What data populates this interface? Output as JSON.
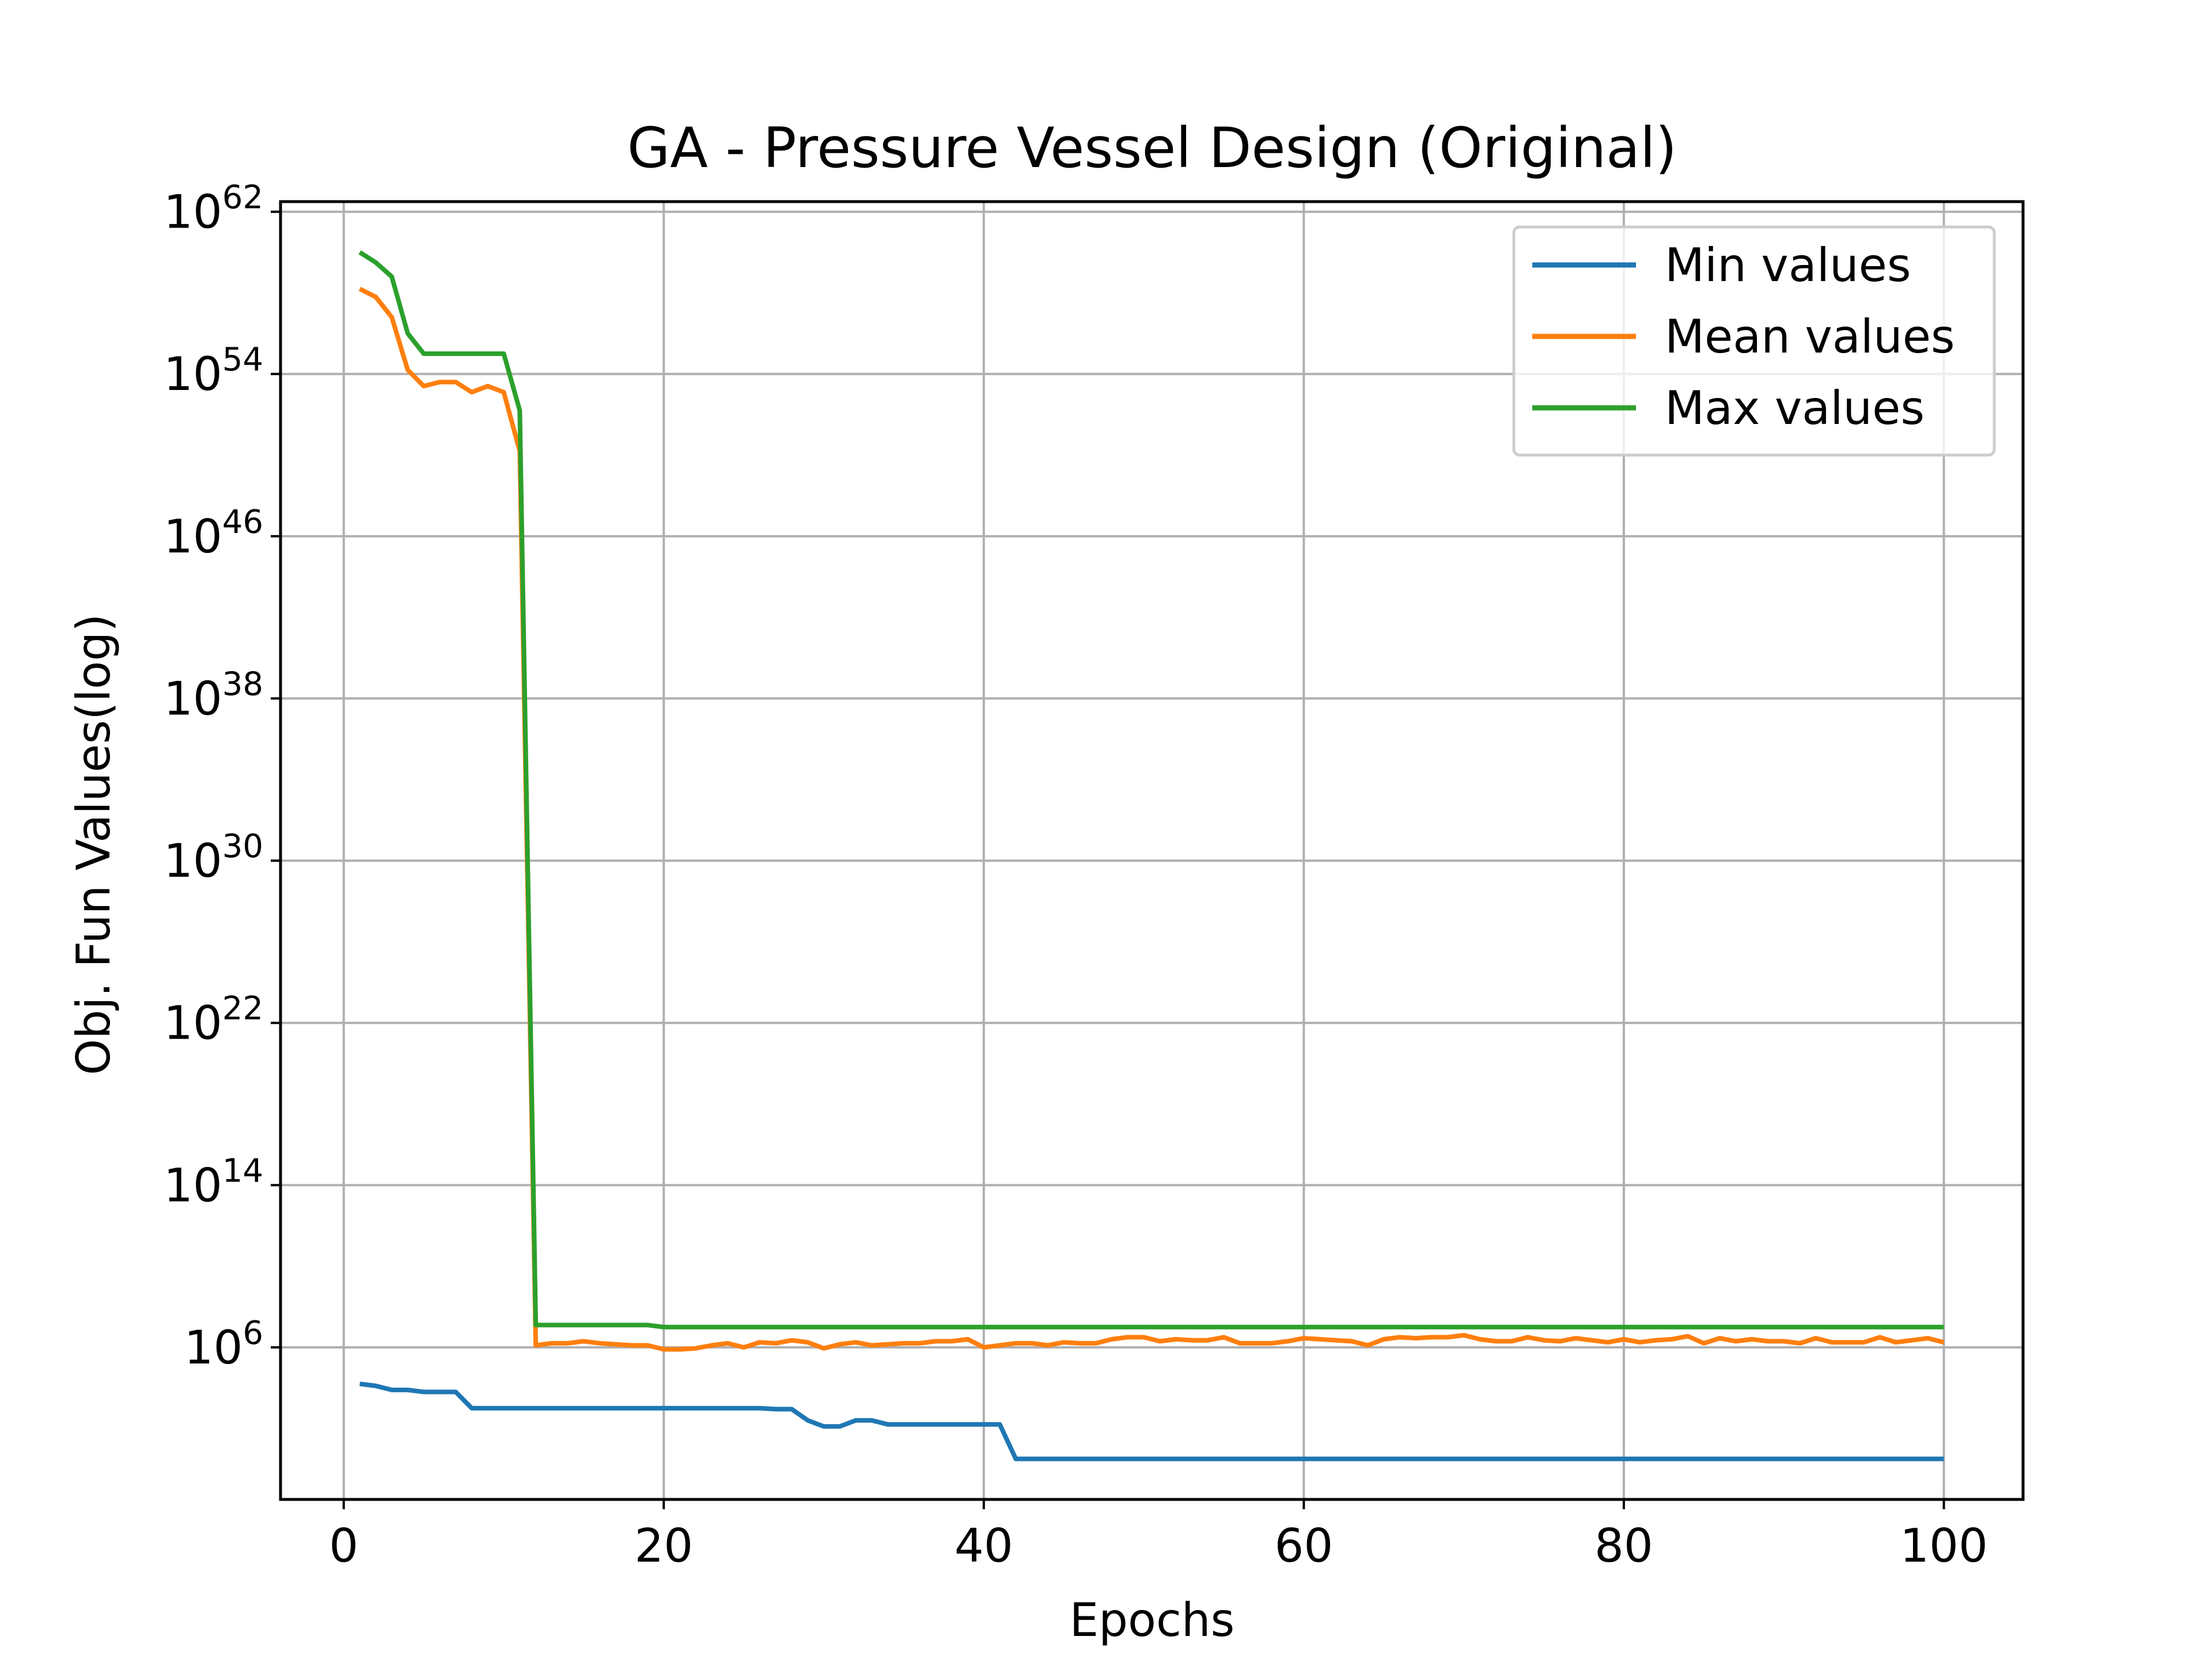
{
  "chart_data": {
    "type": "line",
    "title": "GA - Pressure Vessel Design (Original)",
    "xlabel": "Epochs",
    "ylabel": "Obj. Fun Values(log)",
    "xlim": [
      -3.95,
      104.95
    ],
    "ylim_log10": [
      -1.5,
      62.5
    ],
    "y_scale": "log",
    "x_ticks": [
      0,
      20,
      40,
      60,
      80,
      100
    ],
    "x_tick_labels": [
      "0",
      "20",
      "40",
      "60",
      "80",
      "100"
    ],
    "y_ticks_log10": [
      6,
      14,
      22,
      30,
      38,
      46,
      54,
      62
    ],
    "y_tick_base": "10",
    "y_tick_exponents": [
      "6",
      "14",
      "22",
      "30",
      "38",
      "46",
      "54",
      "62"
    ],
    "grid": true,
    "legend_position": "top-right",
    "colors": {
      "min": "#1f77b4",
      "mean": "#ff7f0e",
      "max": "#2ca02c"
    },
    "series": [
      {
        "name": "Min values",
        "color": "#1f77b4",
        "points_log10": [
          [
            1,
            4.2
          ],
          [
            2,
            4.1
          ],
          [
            3,
            3.9
          ],
          [
            4,
            3.9
          ],
          [
            5,
            3.8
          ],
          [
            6,
            3.8
          ],
          [
            7,
            3.8
          ],
          [
            8,
            3.0
          ],
          [
            9,
            3.0
          ],
          [
            10,
            3.0
          ],
          [
            11,
            3.0
          ],
          [
            12,
            3.0
          ],
          [
            13,
            3.0
          ],
          [
            14,
            3.0
          ],
          [
            15,
            3.0
          ],
          [
            16,
            3.0
          ],
          [
            17,
            3.0
          ],
          [
            18,
            3.0
          ],
          [
            19,
            3.0
          ],
          [
            20,
            3.0
          ],
          [
            21,
            3.0
          ],
          [
            22,
            3.0
          ],
          [
            23,
            3.0
          ],
          [
            24,
            3.0
          ],
          [
            25,
            3.0
          ],
          [
            26,
            3.0
          ],
          [
            27,
            2.95
          ],
          [
            28,
            2.95
          ],
          [
            29,
            2.4
          ],
          [
            30,
            2.1
          ],
          [
            31,
            2.1
          ],
          [
            32,
            2.4
          ],
          [
            33,
            2.4
          ],
          [
            34,
            2.2
          ],
          [
            35,
            2.2
          ],
          [
            36,
            2.2
          ],
          [
            37,
            2.2
          ],
          [
            38,
            2.2
          ],
          [
            39,
            2.2
          ],
          [
            40,
            2.2
          ],
          [
            41,
            2.2
          ],
          [
            42,
            0.5
          ],
          [
            50,
            0.5
          ],
          [
            60,
            0.5
          ],
          [
            70,
            0.5
          ],
          [
            80,
            0.5
          ],
          [
            90,
            0.5
          ],
          [
            100,
            0.5
          ]
        ]
      },
      {
        "name": "Mean values",
        "color": "#ff7f0e",
        "points_log10": [
          [
            1,
            58.2
          ],
          [
            2,
            57.8
          ],
          [
            3,
            56.8
          ],
          [
            4,
            54.2
          ],
          [
            5,
            53.4
          ],
          [
            6,
            53.6
          ],
          [
            7,
            53.6
          ],
          [
            8,
            53.1
          ],
          [
            9,
            53.4
          ],
          [
            10,
            53.1
          ],
          [
            11,
            50.2
          ],
          [
            12,
            6.1
          ],
          [
            13,
            6.2
          ],
          [
            14,
            6.2
          ],
          [
            15,
            6.3
          ],
          [
            16,
            6.2
          ],
          [
            17,
            6.15
          ],
          [
            18,
            6.1
          ],
          [
            19,
            6.1
          ],
          [
            20,
            5.9
          ],
          [
            21,
            5.9
          ],
          [
            22,
            5.95
          ],
          [
            23,
            6.1
          ],
          [
            24,
            6.2
          ],
          [
            25,
            6.0
          ],
          [
            26,
            6.25
          ],
          [
            27,
            6.2
          ],
          [
            28,
            6.35
          ],
          [
            29,
            6.25
          ],
          [
            30,
            5.95
          ],
          [
            31,
            6.15
          ],
          [
            32,
            6.25
          ],
          [
            33,
            6.1
          ],
          [
            34,
            6.15
          ],
          [
            35,
            6.2
          ],
          [
            36,
            6.2
          ],
          [
            37,
            6.3
          ],
          [
            38,
            6.3
          ],
          [
            39,
            6.4
          ],
          [
            40,
            6.0
          ],
          [
            41,
            6.1
          ],
          [
            42,
            6.2
          ],
          [
            43,
            6.2
          ],
          [
            44,
            6.1
          ],
          [
            45,
            6.25
          ],
          [
            46,
            6.2
          ],
          [
            47,
            6.2
          ],
          [
            48,
            6.4
          ],
          [
            49,
            6.5
          ],
          [
            50,
            6.5
          ],
          [
            51,
            6.3
          ],
          [
            52,
            6.4
          ],
          [
            53,
            6.35
          ],
          [
            54,
            6.35
          ],
          [
            55,
            6.5
          ],
          [
            56,
            6.2
          ],
          [
            57,
            6.2
          ],
          [
            58,
            6.2
          ],
          [
            59,
            6.3
          ],
          [
            60,
            6.45
          ],
          [
            61,
            6.4
          ],
          [
            62,
            6.35
          ],
          [
            63,
            6.3
          ],
          [
            64,
            6.1
          ],
          [
            65,
            6.4
          ],
          [
            66,
            6.5
          ],
          [
            67,
            6.45
          ],
          [
            68,
            6.5
          ],
          [
            69,
            6.5
          ],
          [
            70,
            6.6
          ],
          [
            71,
            6.4
          ],
          [
            72,
            6.3
          ],
          [
            73,
            6.3
          ],
          [
            74,
            6.5
          ],
          [
            75,
            6.35
          ],
          [
            76,
            6.3
          ],
          [
            77,
            6.45
          ],
          [
            78,
            6.35
          ],
          [
            79,
            6.25
          ],
          [
            80,
            6.4
          ],
          [
            81,
            6.25
          ],
          [
            82,
            6.35
          ],
          [
            83,
            6.4
          ],
          [
            84,
            6.55
          ],
          [
            85,
            6.2
          ],
          [
            86,
            6.45
          ],
          [
            87,
            6.3
          ],
          [
            88,
            6.4
          ],
          [
            89,
            6.3
          ],
          [
            90,
            6.3
          ],
          [
            91,
            6.2
          ],
          [
            92,
            6.45
          ],
          [
            93,
            6.25
          ],
          [
            94,
            6.25
          ],
          [
            95,
            6.25
          ],
          [
            96,
            6.5
          ],
          [
            97,
            6.25
          ],
          [
            98,
            6.35
          ],
          [
            99,
            6.45
          ],
          [
            100,
            6.25
          ]
        ]
      },
      {
        "name": "Max values",
        "color": "#2ca02c",
        "points_log10": [
          [
            1,
            60.0
          ],
          [
            2,
            59.5
          ],
          [
            3,
            58.8
          ],
          [
            4,
            56.0
          ],
          [
            5,
            55.0
          ],
          [
            6,
            55.0
          ],
          [
            7,
            55.0
          ],
          [
            8,
            55.0
          ],
          [
            9,
            55.0
          ],
          [
            10,
            55.0
          ],
          [
            11,
            52.2
          ],
          [
            12,
            7.1
          ],
          [
            13,
            7.1
          ],
          [
            14,
            7.1
          ],
          [
            15,
            7.1
          ],
          [
            16,
            7.1
          ],
          [
            17,
            7.1
          ],
          [
            18,
            7.1
          ],
          [
            19,
            7.1
          ],
          [
            20,
            7.0
          ],
          [
            21,
            7.0
          ],
          [
            30,
            7.0
          ],
          [
            40,
            7.0
          ],
          [
            50,
            7.0
          ],
          [
            60,
            7.0
          ],
          [
            70,
            7.0
          ],
          [
            80,
            7.0
          ],
          [
            90,
            7.0
          ],
          [
            100,
            7.0
          ]
        ]
      }
    ]
  }
}
